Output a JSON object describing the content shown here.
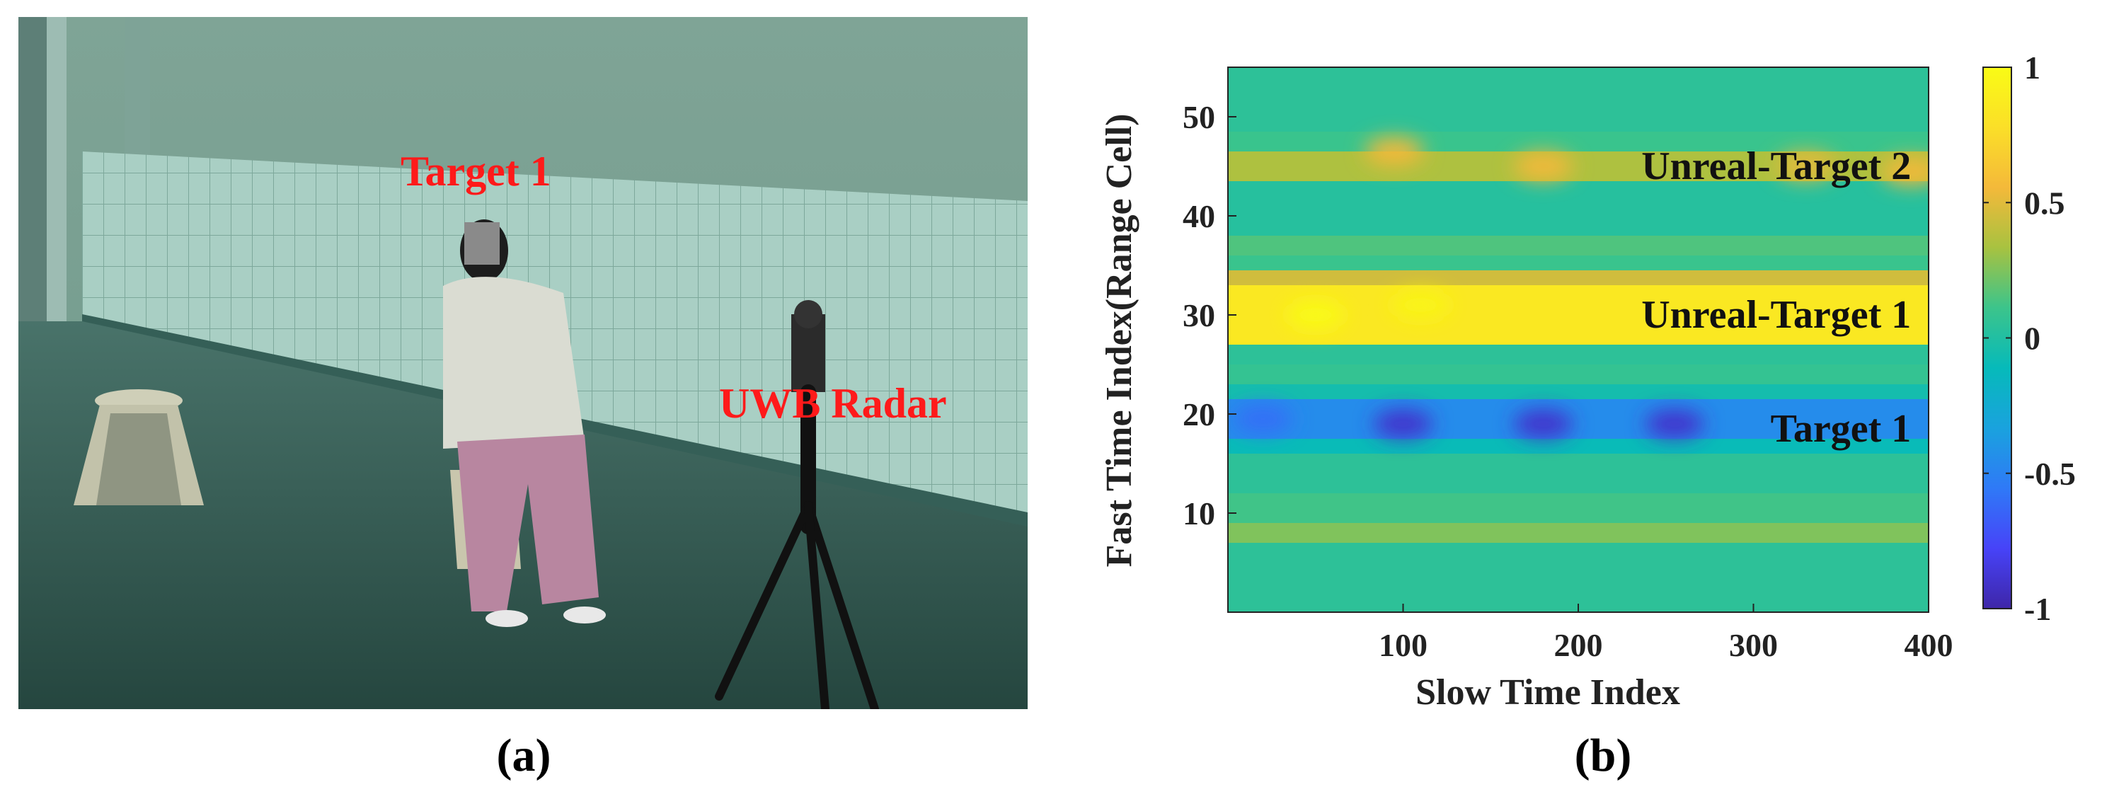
{
  "panel_a": {
    "caption": "(a)",
    "labels": {
      "target": "Target 1",
      "radar": "UWB Radar"
    },
    "label_color": "#ff1a1a"
  },
  "panel_b": {
    "caption": "(b)"
  },
  "chart_data": {
    "type": "heatmap",
    "title": "",
    "xlabel": "Slow Time Index",
    "ylabel": "Fast Time Index(Range Cell)",
    "xlim": [
      0,
      400
    ],
    "ylim": [
      0,
      55
    ],
    "xticks": [
      100,
      200,
      300,
      400
    ],
    "yticks": [
      10,
      20,
      30,
      40,
      50
    ],
    "colorbar": {
      "range": [
        -1,
        1
      ],
      "ticks": [
        1,
        0.5,
        0,
        -0.5,
        -1
      ],
      "tick_labels": [
        "1",
        "0.5",
        "0",
        "-0.5",
        "-1"
      ],
      "colormap": "parula",
      "colors": [
        "#3e26a8",
        "#4743f8",
        "#2f79f7",
        "#1aa2de",
        "#06baba",
        "#3cc48b",
        "#a8c240",
        "#f4b93a",
        "#fbdf28",
        "#f9fb15"
      ]
    },
    "background_value": 0.05,
    "bands": [
      {
        "y_range": [
          0,
          7
        ],
        "value": 0.05
      },
      {
        "y_range": [
          7,
          9
        ],
        "value": 0.25
      },
      {
        "y_range": [
          9,
          12
        ],
        "value": 0.12
      },
      {
        "y_range": [
          12,
          16
        ],
        "value": 0.05
      },
      {
        "y_range": [
          16,
          17.5
        ],
        "value": -0.1
      },
      {
        "y_range": [
          17.5,
          21.5
        ],
        "value": -0.45
      },
      {
        "y_range": [
          21.5,
          23
        ],
        "value": -0.05
      },
      {
        "y_range": [
          23,
          25
        ],
        "value": 0.08
      },
      {
        "y_range": [
          25,
          27
        ],
        "value": 0.05
      },
      {
        "y_range": [
          27,
          33
        ],
        "value": 0.85
      },
      {
        "y_range": [
          33,
          34.5
        ],
        "value": 0.45
      },
      {
        "y_range": [
          34.5,
          36
        ],
        "value": 0.1
      },
      {
        "y_range": [
          36,
          38
        ],
        "value": 0.15
      },
      {
        "y_range": [
          38,
          43.5
        ],
        "value": 0.02
      },
      {
        "y_range": [
          43.5,
          46.5
        ],
        "value": 0.35
      },
      {
        "y_range": [
          46.5,
          48.5
        ],
        "value": 0.1
      },
      {
        "y_range": [
          48.5,
          55
        ],
        "value": 0.05
      }
    ],
    "hotspots": [
      {
        "x": 100,
        "y": 19,
        "value": -0.9
      },
      {
        "x": 180,
        "y": 19,
        "value": -0.9
      },
      {
        "x": 255,
        "y": 19,
        "value": -0.9
      },
      {
        "x": 20,
        "y": 19.5,
        "value": -0.6
      },
      {
        "x": 50,
        "y": 30,
        "value": 1.0
      },
      {
        "x": 110,
        "y": 31,
        "value": 0.95
      },
      {
        "x": 95,
        "y": 46.5,
        "value": 0.55
      },
      {
        "x": 180,
        "y": 45,
        "value": 0.55
      },
      {
        "x": 330,
        "y": 45,
        "value": 0.5
      },
      {
        "x": 390,
        "y": 44.5,
        "value": 0.55
      }
    ],
    "annotations": [
      {
        "text": "Unreal-Target 2",
        "x": 390,
        "y": 45
      },
      {
        "text": "Unreal-Target 1",
        "x": 390,
        "y": 30
      },
      {
        "text": "Target 1",
        "x": 390,
        "y": 18.5
      }
    ]
  }
}
